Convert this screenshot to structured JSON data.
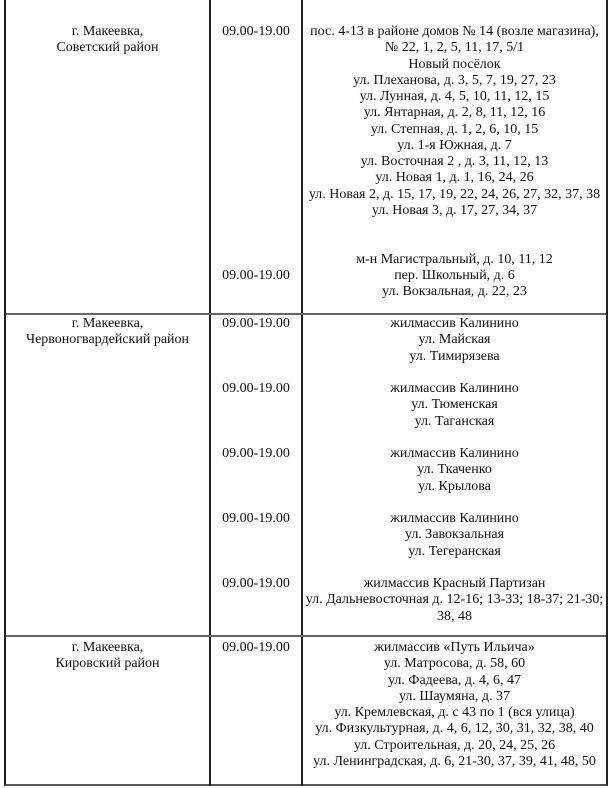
{
  "rows": [
    {
      "district": [
        "г. Макеевка,",
        "Советский район"
      ],
      "blocks": [
        {
          "time": "09.00-19.00",
          "addresses": [
            "пос. 4-13 в районе домов № 14 (возле магазина),",
            "№ 22, 1, 2, 5, 11, 17, 5/1",
            "Новый посёлок",
            "ул. Плеханова, д. 3, 5, 7, 19, 27, 23",
            "ул. Лунная, д. 4, 5, 10, 11, 12, 15",
            "ул. Янтарная, д. 2, 8, 11, 12, 16",
            "ул. Степная, д. 1, 2, 6, 10, 15",
            "ул. 1-я Южная, д. 7",
            "ул. Восточная 2 , д. 3, 11, 12, 13",
            "ул. Новая 1, д. 1, 16, 24, 26",
            "ул. Новая 2, д. 15, 17, 19, 22, 24, 26, 27, 32, 37, 38",
            "ул. Новая 3, д. 17, 27, 34, 37"
          ]
        },
        {
          "time": "09.00-19.00",
          "addresses": [
            "м-н Магистральный, д. 10, 11, 12",
            "пер. Школьный, д. 6",
            "ул. Вокзальная, д. 22, 23"
          ]
        }
      ]
    },
    {
      "district": [
        "г. Макеевка,",
        "Червоногвардейский район"
      ],
      "blocks": [
        {
          "time": "09.00-19.00",
          "addresses": [
            "жилмассив  Калинино",
            "ул. Майская",
            "ул. Тимирязева"
          ]
        },
        {
          "time": "09.00-19.00",
          "addresses": [
            "жилмассив Калинино",
            "ул. Тюменская",
            "ул. Таганская"
          ]
        },
        {
          "time": "09.00-19.00",
          "addresses": [
            "жилмассив Калинино",
            "ул. Ткаченко",
            "ул. Крылова"
          ]
        },
        {
          "time": "09.00-19.00",
          "addresses": [
            "жилмассив Калинино",
            "ул. Завокзальная",
            "ул. Тегеранская"
          ]
        },
        {
          "time": "09.00-19.00",
          "addresses": [
            "жилмассив Красный Партизан",
            "ул. Дальневосточная д. 12-16; 13-33; 18-37; 21-30; 38, 48"
          ]
        }
      ]
    },
    {
      "district": [
        "г. Макеевка,",
        "Кировский район"
      ],
      "blocks": [
        {
          "time": "09.00-19.00",
          "addresses": [
            "жилмассив «Путь Ильича»",
            "ул. Матросова, д. 58, 60",
            "ул. Фадеева, д. 4, 6, 47",
            "ул. Шаумяна, д. 37",
            "ул. Кремлевская, д. с 43 по 1 (вся улица)",
            "ул. Физкультурная, д. 4, 6, 12, 30, 31, 32, 38, 40",
            "ул. Строительная, д. 20, 24, 25, 26",
            "ул. Ленинградская, д. 6, 21-30, 37, 39, 41, 48, 50"
          ]
        }
      ]
    }
  ]
}
